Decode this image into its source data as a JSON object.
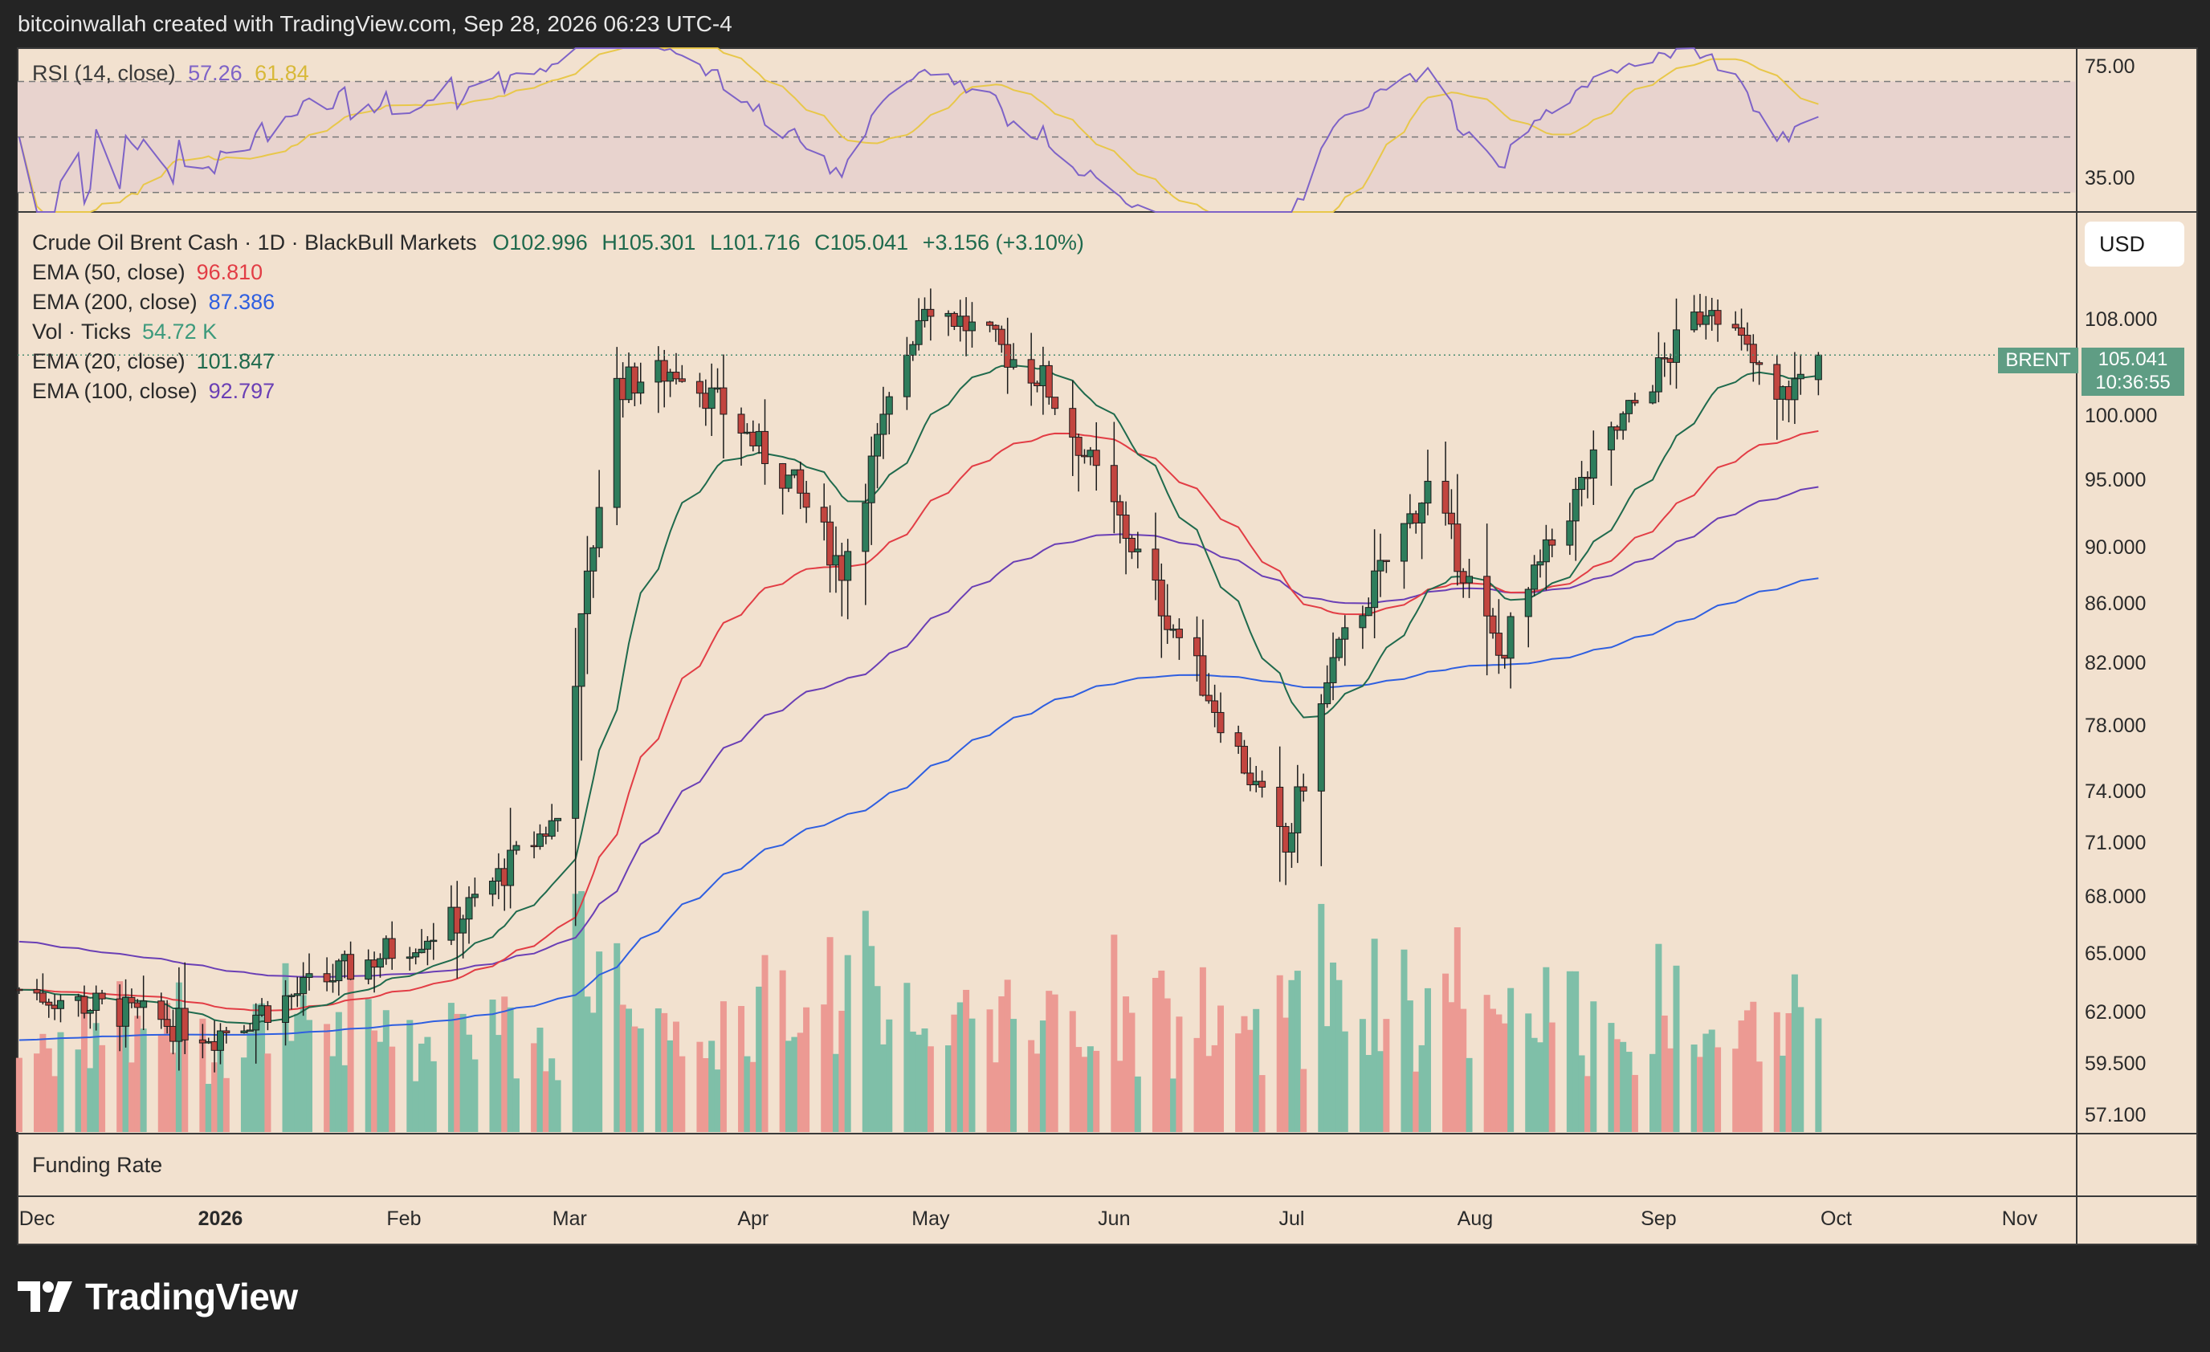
{
  "header": {
    "credit": "bitcoinwallah created with TradingView.com, Sep 28, 2026 06:23 UTC-4"
  },
  "logo": {
    "text": "TradingView"
  },
  "rsi_legend": {
    "label": "RSI (14, close)",
    "rsi": "57.26",
    "ma": "61.84"
  },
  "legend": {
    "symbol": "Crude Oil Brent Cash · 1D · BlackBull Markets",
    "o": "O102.996",
    "h": "H105.301",
    "l": "L101.716",
    "c": "C105.041",
    "chg": "+3.156 (+3.10%)",
    "ema50_label": "EMA (50, close)",
    "ema50": "96.810",
    "ema200_label": "EMA (200, close)",
    "ema200": "87.386",
    "vol_label": "Vol · Ticks",
    "vol": "54.72 K",
    "ema20_label": "EMA (20, close)",
    "ema20": "101.847",
    "ema100_label": "EMA (100, close)",
    "ema100": "92.797"
  },
  "currency_button": "USD",
  "price_tag": {
    "symbol": "BRENT",
    "price": "105.041",
    "countdown": "10:36:55"
  },
  "funding_label": "Funding Rate",
  "colors": {
    "panel_bg": "#f2e1cf",
    "up": "#2e7d5c",
    "down": "#c2453f",
    "vol_up": "#7fbfa8",
    "vol_down": "#ec9a93",
    "ema20": "#1f6a4d",
    "ema50": "#e23d45",
    "ema100": "#6a3fb5",
    "ema200": "#2f5fe0",
    "rsi": "#7e63c7",
    "rsi_ma": "#e8c74a"
  },
  "chart_data": [
    {
      "type": "candlestick",
      "title": "Crude Oil Brent Cash · 1D · BlackBull Markets",
      "x_ticks": [
        "Dec",
        "2026",
        "Feb",
        "Mar",
        "Apr",
        "May",
        "Jun",
        "Jul",
        "Aug",
        "Sep",
        "Oct",
        "Nov"
      ],
      "y_ticks": [
        108.0,
        100.0,
        95.0,
        90.0,
        86.0,
        82.0,
        78.0,
        74.0,
        71.0,
        68.0,
        65.0,
        62.0,
        59.5,
        57.1
      ],
      "y_scale": "log",
      "ylim": [
        56.3,
        117.5
      ],
      "last_price": 105.041,
      "key_closes": [
        {
          "date": "2025-11-28",
          "close": 63.2
        },
        {
          "date": "2025-12-31",
          "close": 61.0
        },
        {
          "date": "2026-02-10",
          "close": 66.8
        },
        {
          "date": "2026-02-27",
          "close": 72.5
        },
        {
          "date": "2026-03-09",
          "close": 102.5
        },
        {
          "date": "2026-03-20",
          "close": 104.0
        },
        {
          "date": "2026-04-08",
          "close": 94.5
        },
        {
          "date": "2026-04-16",
          "close": 88.5
        },
        {
          "date": "2026-04-30",
          "close": 110.0
        },
        {
          "date": "2026-05-20",
          "close": 103.0
        },
        {
          "date": "2026-06-09",
          "close": 86.0
        },
        {
          "date": "2026-06-30",
          "close": 70.5
        },
        {
          "date": "2026-07-08",
          "close": 82.0
        },
        {
          "date": "2026-07-24",
          "close": 94.5
        },
        {
          "date": "2026-08-05",
          "close": 82.5
        },
        {
          "date": "2026-08-20",
          "close": 95.5
        },
        {
          "date": "2026-09-10",
          "close": 110.0
        },
        {
          "date": "2026-09-21",
          "close": 101.0
        },
        {
          "date": "2026-09-28",
          "close": 105.041
        }
      ],
      "ema_last": {
        "ema20": 101.847,
        "ema50": 96.81,
        "ema100": 92.797,
        "ema200": 87.386
      }
    },
    {
      "type": "line",
      "title": "RSI (14, close)",
      "y_ticks": [
        75.0,
        35.0
      ],
      "bands": [
        70,
        50,
        30
      ],
      "ylim": [
        23,
        82
      ],
      "series": [
        {
          "name": "RSI",
          "last": 57.26
        },
        {
          "name": "MA",
          "last": 61.84
        }
      ]
    }
  ]
}
